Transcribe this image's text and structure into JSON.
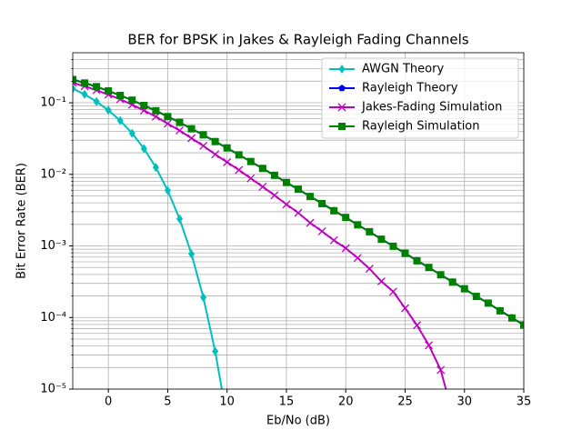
{
  "chart_data": {
    "type": "line",
    "title": "BER for BPSK in Jakes & Rayleigh Fading Channels",
    "x_label": "Eb/No (dB)",
    "y_label": "Bit Error Rate (BER)",
    "x": [
      -3,
      -2,
      -1,
      0,
      1,
      2,
      3,
      4,
      5,
      6,
      7,
      8,
      9,
      10,
      11,
      12,
      13,
      14,
      15,
      16,
      17,
      18,
      19,
      20,
      21,
      22,
      23,
      24,
      25,
      26,
      27,
      28,
      29,
      30,
      31,
      32,
      33,
      34,
      35
    ],
    "series": [
      {
        "name": "AWGN Theory",
        "color": "#00bfbf",
        "marker": "diamond",
        "values": [
          0.158,
          0.131,
          0.104,
          0.0786,
          0.0563,
          0.0375,
          0.0229,
          0.0125,
          0.00595,
          0.00239,
          0.000773,
          0.000191,
          3.36e-05,
          3.87e-06,
          null,
          null,
          null,
          null,
          null,
          null,
          null,
          null,
          null,
          null,
          null,
          null,
          null,
          null,
          null,
          null,
          null,
          null,
          null,
          null,
          null,
          null,
          null,
          null,
          null
        ]
      },
      {
        "name": "Rayleigh Theory",
        "color": "#0000ff",
        "marker": "pentagon",
        "values": [
          0.2111,
          0.189,
          0.1674,
          0.1464,
          0.1267,
          0.1085,
          0.0919,
          0.0771,
          0.0642,
          0.053,
          0.0435,
          0.0355,
          0.0288,
          0.0233,
          0.01874,
          0.01506,
          0.01207,
          0.00966,
          0.00772,
          0.00616,
          0.00492,
          0.00393,
          0.00313,
          0.00249,
          0.00198,
          0.00157,
          0.00125,
          0.000991,
          0.000788,
          0.000626,
          0.000498,
          0.000396,
          0.000315,
          0.00025,
          0.000199,
          0.000158,
          0.000125,
          9.95e-05,
          7.9e-05
        ]
      },
      {
        "name": "Jakes-Fading Simulation",
        "color": "#bf00bf",
        "marker": "x",
        "values": [
          0.19,
          0.17,
          0.15,
          0.13,
          0.112,
          0.094,
          0.078,
          0.064,
          0.051,
          0.041,
          0.032,
          0.025,
          0.019,
          0.0148,
          0.0115,
          0.0088,
          0.0067,
          0.0051,
          0.0038,
          0.0029,
          0.0021,
          0.0016,
          0.0012,
          0.00093,
          0.00068,
          0.00048,
          0.00032,
          0.00023,
          0.000135,
          7.8e-05,
          4.1e-05,
          1.85e-05,
          4.5e-06,
          null,
          null,
          null,
          null,
          null,
          null
        ]
      },
      {
        "name": "Rayleigh Simulation",
        "color": "#008000",
        "marker": "square",
        "values": [
          0.211,
          0.1885,
          0.1678,
          0.1462,
          0.1265,
          0.1087,
          0.0917,
          0.0773,
          0.0641,
          0.0532,
          0.0433,
          0.0356,
          0.0287,
          0.0234,
          0.0187,
          0.0151,
          0.0121,
          0.0097,
          0.0077,
          0.0062,
          0.0049,
          0.0039,
          0.0031,
          0.0025,
          0.00197,
          0.00158,
          0.00124,
          0.00099,
          0.00079,
          0.00062,
          0.0005,
          0.000395,
          0.000312,
          0.000252,
          0.000197,
          0.000159,
          0.000124,
          9.85e-05,
          7.85e-05
        ]
      }
    ],
    "xlim": [
      -3,
      35
    ],
    "xticks": [
      0,
      5,
      10,
      15,
      20,
      25,
      30,
      35
    ],
    "ylim": [
      1e-05,
      0.5
    ],
    "log_y": true,
    "yticks": [
      {
        "value": 1e-05,
        "label": "10⁻⁵"
      },
      {
        "value": 0.0001,
        "label": "10⁻⁴"
      },
      {
        "value": 0.001,
        "label": "10⁻³"
      },
      {
        "value": 0.01,
        "label": "10⁻²"
      },
      {
        "value": 0.1,
        "label": "10⁻¹"
      }
    ],
    "grid": true,
    "legend": "upper right"
  }
}
